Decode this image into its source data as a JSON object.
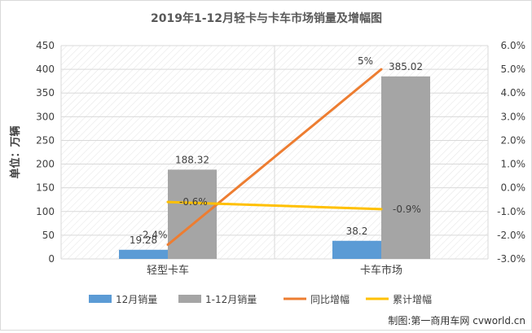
{
  "chart_data": {
    "type": "bar",
    "title": "2019年1-12月轻卡与卡车市场销量及增幅图",
    "ylabel": "单位：万辆",
    "y2label": "",
    "categories": [
      "轻型卡车",
      "卡车市场"
    ],
    "ylim": [
      0,
      450
    ],
    "yticks": [
      "0",
      "50",
      "100",
      "150",
      "200",
      "250",
      "300",
      "350",
      "400",
      "450"
    ],
    "y2lim": [
      -3.0,
      6.0
    ],
    "y2ticks": [
      "-3.0%",
      "-2.0%",
      "-1.0%",
      "0.0%",
      "1.0%",
      "2.0%",
      "3.0%",
      "4.0%",
      "5.0%",
      "6.0%"
    ],
    "bar_series": [
      {
        "name": "12月销量",
        "color": "#5b9bd5",
        "values": [
          19.28,
          38.2
        ],
        "labels": [
          "19.28",
          "38.2"
        ]
      },
      {
        "name": "1-12月销量",
        "color": "#a5a5a5",
        "values": [
          188.32,
          385.02
        ],
        "labels": [
          "188.32",
          "385.02"
        ]
      }
    ],
    "line_series": [
      {
        "name": "同比增幅",
        "color": "#ed7d31",
        "axis": "right",
        "values": [
          -2.4,
          5.0
        ],
        "labels": [
          "-2.4%",
          "5%"
        ]
      },
      {
        "name": "累计增幅",
        "color": "#ffc000",
        "axis": "right",
        "values": [
          -0.6,
          -0.9
        ],
        "labels": [
          "-0.6%",
          "-0.9%"
        ]
      }
    ],
    "grid": true,
    "legend_position": "bottom",
    "source": "制图:第一商用车网 cvworld.cn"
  }
}
